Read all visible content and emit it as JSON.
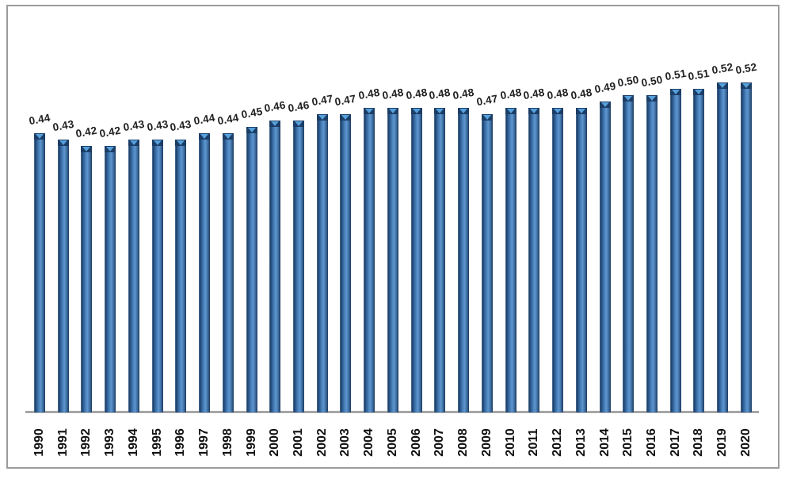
{
  "chart_data": {
    "type": "bar",
    "title": "",
    "subtitle": "",
    "xlabel": "",
    "ylabel": "",
    "legend": "none",
    "grid": false,
    "ylim": [
      0,
      0.55
    ],
    "categories": [
      "1990",
      "1991",
      "1992",
      "1993",
      "1994",
      "1995",
      "1996",
      "1997",
      "1998",
      "1999",
      "2000",
      "2001",
      "2002",
      "2003",
      "2004",
      "2005",
      "2006",
      "2007",
      "2008",
      "2009",
      "2010",
      "2011",
      "2012",
      "2013",
      "2014",
      "2015",
      "2016",
      "2017",
      "2018",
      "2019",
      "2020"
    ],
    "values": [
      0.44,
      0.43,
      0.42,
      0.42,
      0.43,
      0.43,
      0.43,
      0.44,
      0.44,
      0.45,
      0.46,
      0.46,
      0.47,
      0.47,
      0.48,
      0.48,
      0.48,
      0.48,
      0.48,
      0.47,
      0.48,
      0.48,
      0.48,
      0.48,
      0.49,
      0.5,
      0.5,
      0.51,
      0.51,
      0.52,
      0.52
    ],
    "value_labels": [
      "0.44",
      "0.43",
      "0.42",
      "0.42",
      "0.43",
      "0.43",
      "0.43",
      "0.44",
      "0.44",
      "0.45",
      "0.46",
      "0.46",
      "0.47",
      "0.47",
      "0.48",
      "0.48",
      "0.48",
      "0.48",
      "0.48",
      "0.47",
      "0.48",
      "0.48",
      "0.48",
      "0.48",
      "0.49",
      "0.50",
      "0.50",
      "0.51",
      "0.51",
      "0.52",
      "0.52"
    ],
    "data_labels_visible": true,
    "x_tick_rotation_deg": -90,
    "colors": {
      "bar_body_main": "#3e74ad",
      "bar_edge_dark": "#1c3e66",
      "bar_highlight": "#5e96cf",
      "cap_triangle": "#56a0dc",
      "axis_line": "#a6a6a6",
      "outer_border": "#9b9b9b",
      "label_text": "#1f1f1f",
      "background": "#ffffff"
    }
  }
}
